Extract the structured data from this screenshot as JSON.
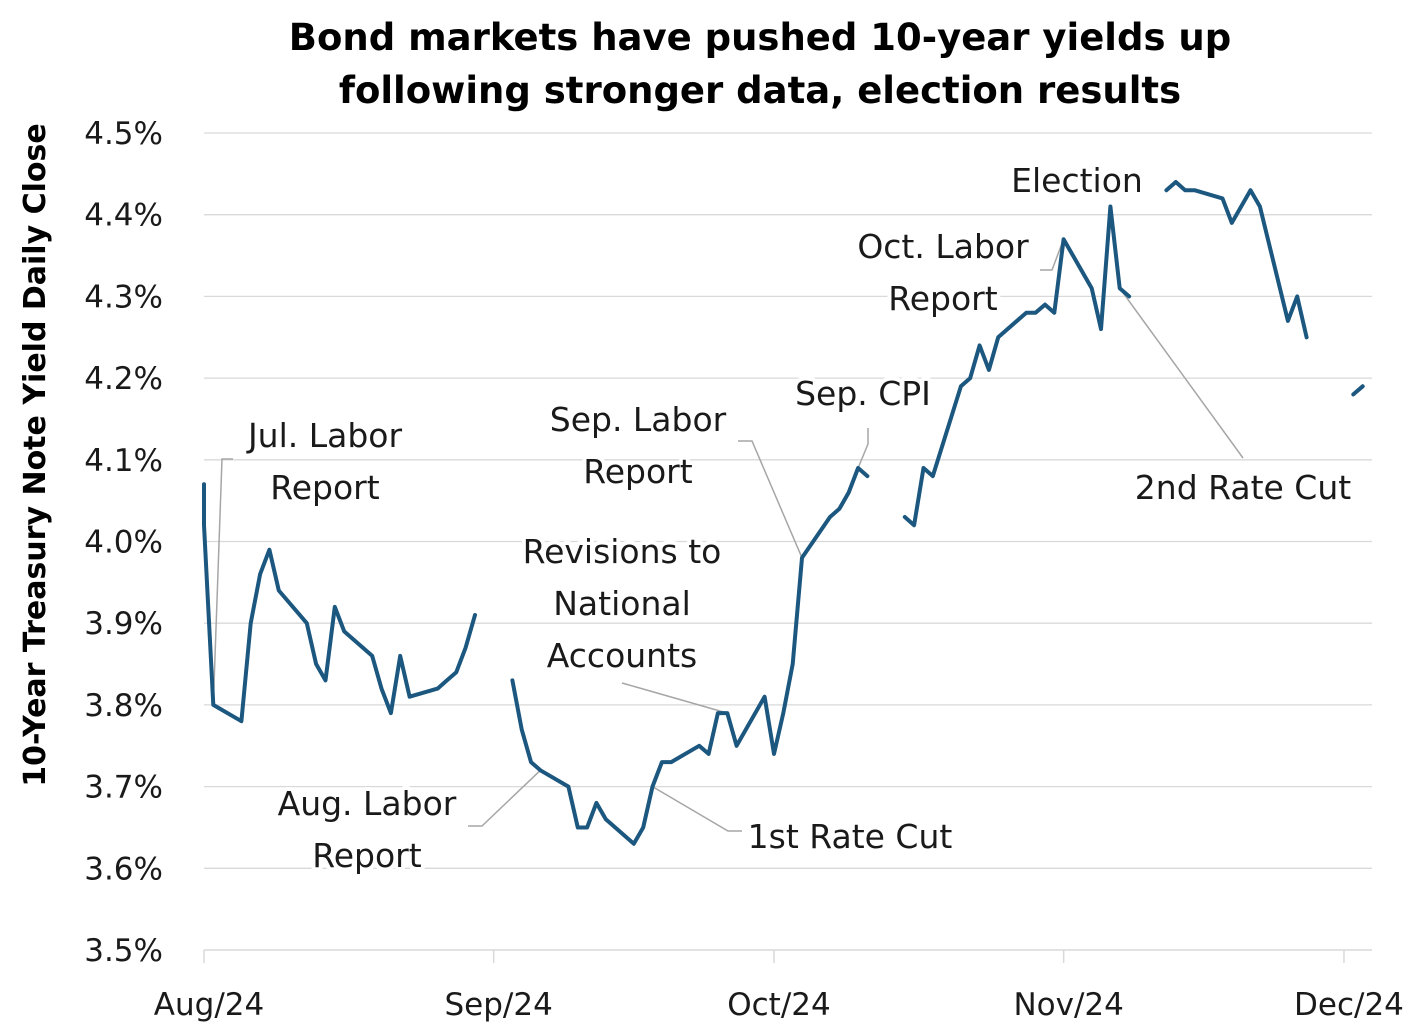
{
  "chart_data": {
    "type": "line",
    "title_lines": [
      "Bond markets have pushed 10-year yields up",
      "following stronger data, election results"
    ],
    "xlabel": "",
    "ylabel": "10-Year Treasury Note Yield Daily Close",
    "ylim": [
      3.5,
      4.5
    ],
    "y_ticks": [
      "3.5%",
      "3.6%",
      "3.7%",
      "3.8%",
      "3.9%",
      "4.0%",
      "4.1%",
      "4.2%",
      "4.3%",
      "4.4%",
      "4.5%"
    ],
    "x_ticks": [
      {
        "label": "Aug/24",
        "date": "2024-08-01"
      },
      {
        "label": "Sep/24",
        "date": "2024-09-01"
      },
      {
        "label": "Oct/24",
        "date": "2024-10-01"
      },
      {
        "label": "Nov/24",
        "date": "2024-11-01"
      },
      {
        "label": "Dec/24",
        "date": "2024-12-01"
      }
    ],
    "grid": true,
    "line_color": "#1c577f",
    "segments": [
      [
        [
          "2024-08-01",
          4.07
        ],
        [
          "2024-08-01",
          4.02
        ],
        [
          "2024-08-02",
          3.8
        ],
        [
          "2024-08-05",
          3.78
        ],
        [
          "2024-08-06",
          3.9
        ],
        [
          "2024-08-07",
          3.96
        ],
        [
          "2024-08-08",
          3.99
        ],
        [
          "2024-08-09",
          3.94
        ],
        [
          "2024-08-12",
          3.9
        ],
        [
          "2024-08-13",
          3.85
        ],
        [
          "2024-08-14",
          3.83
        ],
        [
          "2024-08-15",
          3.92
        ],
        [
          "2024-08-16",
          3.89
        ],
        [
          "2024-08-19",
          3.86
        ],
        [
          "2024-08-20",
          3.82
        ],
        [
          "2024-08-21",
          3.79
        ],
        [
          "2024-08-22",
          3.86
        ],
        [
          "2024-08-23",
          3.81
        ],
        [
          "2024-08-26",
          3.82
        ],
        [
          "2024-08-27",
          3.83
        ],
        [
          "2024-08-28",
          3.84
        ],
        [
          "2024-08-29",
          3.87
        ],
        [
          "2024-08-30",
          3.91
        ]
      ],
      [
        [
          "2024-09-03",
          3.83
        ],
        [
          "2024-09-04",
          3.77
        ],
        [
          "2024-09-05",
          3.73
        ],
        [
          "2024-09-06",
          3.72
        ],
        [
          "2024-09-09",
          3.7
        ],
        [
          "2024-09-10",
          3.65
        ],
        [
          "2024-09-11",
          3.65
        ],
        [
          "2024-09-12",
          3.68
        ],
        [
          "2024-09-13",
          3.66
        ],
        [
          "2024-09-16",
          3.63
        ],
        [
          "2024-09-17",
          3.65
        ],
        [
          "2024-09-18",
          3.7
        ],
        [
          "2024-09-19",
          3.73
        ],
        [
          "2024-09-20",
          3.73
        ],
        [
          "2024-09-23",
          3.75
        ],
        [
          "2024-09-24",
          3.74
        ],
        [
          "2024-09-25",
          3.79
        ],
        [
          "2024-09-26",
          3.79
        ],
        [
          "2024-09-27",
          3.75
        ],
        [
          "2024-09-30",
          3.81
        ],
        [
          "2024-10-01",
          3.74
        ],
        [
          "2024-10-02",
          3.79
        ],
        [
          "2024-10-03",
          3.85
        ],
        [
          "2024-10-04",
          3.98
        ],
        [
          "2024-10-07",
          4.03
        ],
        [
          "2024-10-08",
          4.04
        ],
        [
          "2024-10-09",
          4.06
        ],
        [
          "2024-10-10",
          4.09
        ],
        [
          "2024-10-11",
          4.08
        ]
      ],
      [
        [
          "2024-10-15",
          4.03
        ],
        [
          "2024-10-16",
          4.02
        ],
        [
          "2024-10-17",
          4.09
        ],
        [
          "2024-10-18",
          4.08
        ],
        [
          "2024-10-21",
          4.19
        ],
        [
          "2024-10-22",
          4.2
        ],
        [
          "2024-10-23",
          4.24
        ],
        [
          "2024-10-24",
          4.21
        ],
        [
          "2024-10-25",
          4.25
        ],
        [
          "2024-10-28",
          4.28
        ],
        [
          "2024-10-29",
          4.28
        ],
        [
          "2024-10-30",
          4.29
        ],
        [
          "2024-10-31",
          4.28
        ],
        [
          "2024-11-01",
          4.37
        ],
        [
          "2024-11-04",
          4.31
        ],
        [
          "2024-11-05",
          4.26
        ],
        [
          "2024-11-06",
          4.41
        ],
        [
          "2024-11-07",
          4.31
        ],
        [
          "2024-11-08",
          4.3
        ]
      ],
      [
        [
          "2024-11-12",
          4.43
        ],
        [
          "2024-11-13",
          4.44
        ],
        [
          "2024-11-14",
          4.43
        ],
        [
          "2024-11-15",
          4.43
        ],
        [
          "2024-11-18",
          4.42
        ],
        [
          "2024-11-19",
          4.39
        ],
        [
          "2024-11-20",
          4.41
        ],
        [
          "2024-11-21",
          4.43
        ],
        [
          "2024-11-22",
          4.41
        ],
        [
          "2024-11-25",
          4.27
        ],
        [
          "2024-11-26",
          4.3
        ],
        [
          "2024-11-27",
          4.25
        ]
      ],
      [
        [
          "2024-12-02",
          4.18
        ],
        [
          "2024-12-03",
          4.19
        ]
      ]
    ],
    "annotations": [
      {
        "text": [
          "Jul. Labor",
          "Report"
        ],
        "date": "2024-08-02",
        "value": 3.8
      },
      {
        "text": [
          "Aug. Labor",
          "Report"
        ],
        "date": "2024-09-06",
        "value": 3.72
      },
      {
        "text": [
          "Revisions to",
          "National",
          "Accounts"
        ],
        "date": "2024-09-26",
        "value": 3.79
      },
      {
        "text": [
          "1st Rate Cut"
        ],
        "date": "2024-09-18",
        "value": 3.7
      },
      {
        "text": [
          "Sep. Labor",
          "Report"
        ],
        "date": "2024-10-04",
        "value": 3.98
      },
      {
        "text": [
          "Sep. CPI"
        ],
        "date": "2024-10-10",
        "value": 4.09
      },
      {
        "text": [
          "Oct. Labor",
          "Report"
        ],
        "date": "2024-11-01",
        "value": 4.37
      },
      {
        "text": [
          "Election"
        ],
        "date": "2024-11-05",
        "value": 4.26
      },
      {
        "text": [
          "2nd Rate Cut"
        ],
        "date": "2024-11-07",
        "value": 4.31
      }
    ]
  }
}
